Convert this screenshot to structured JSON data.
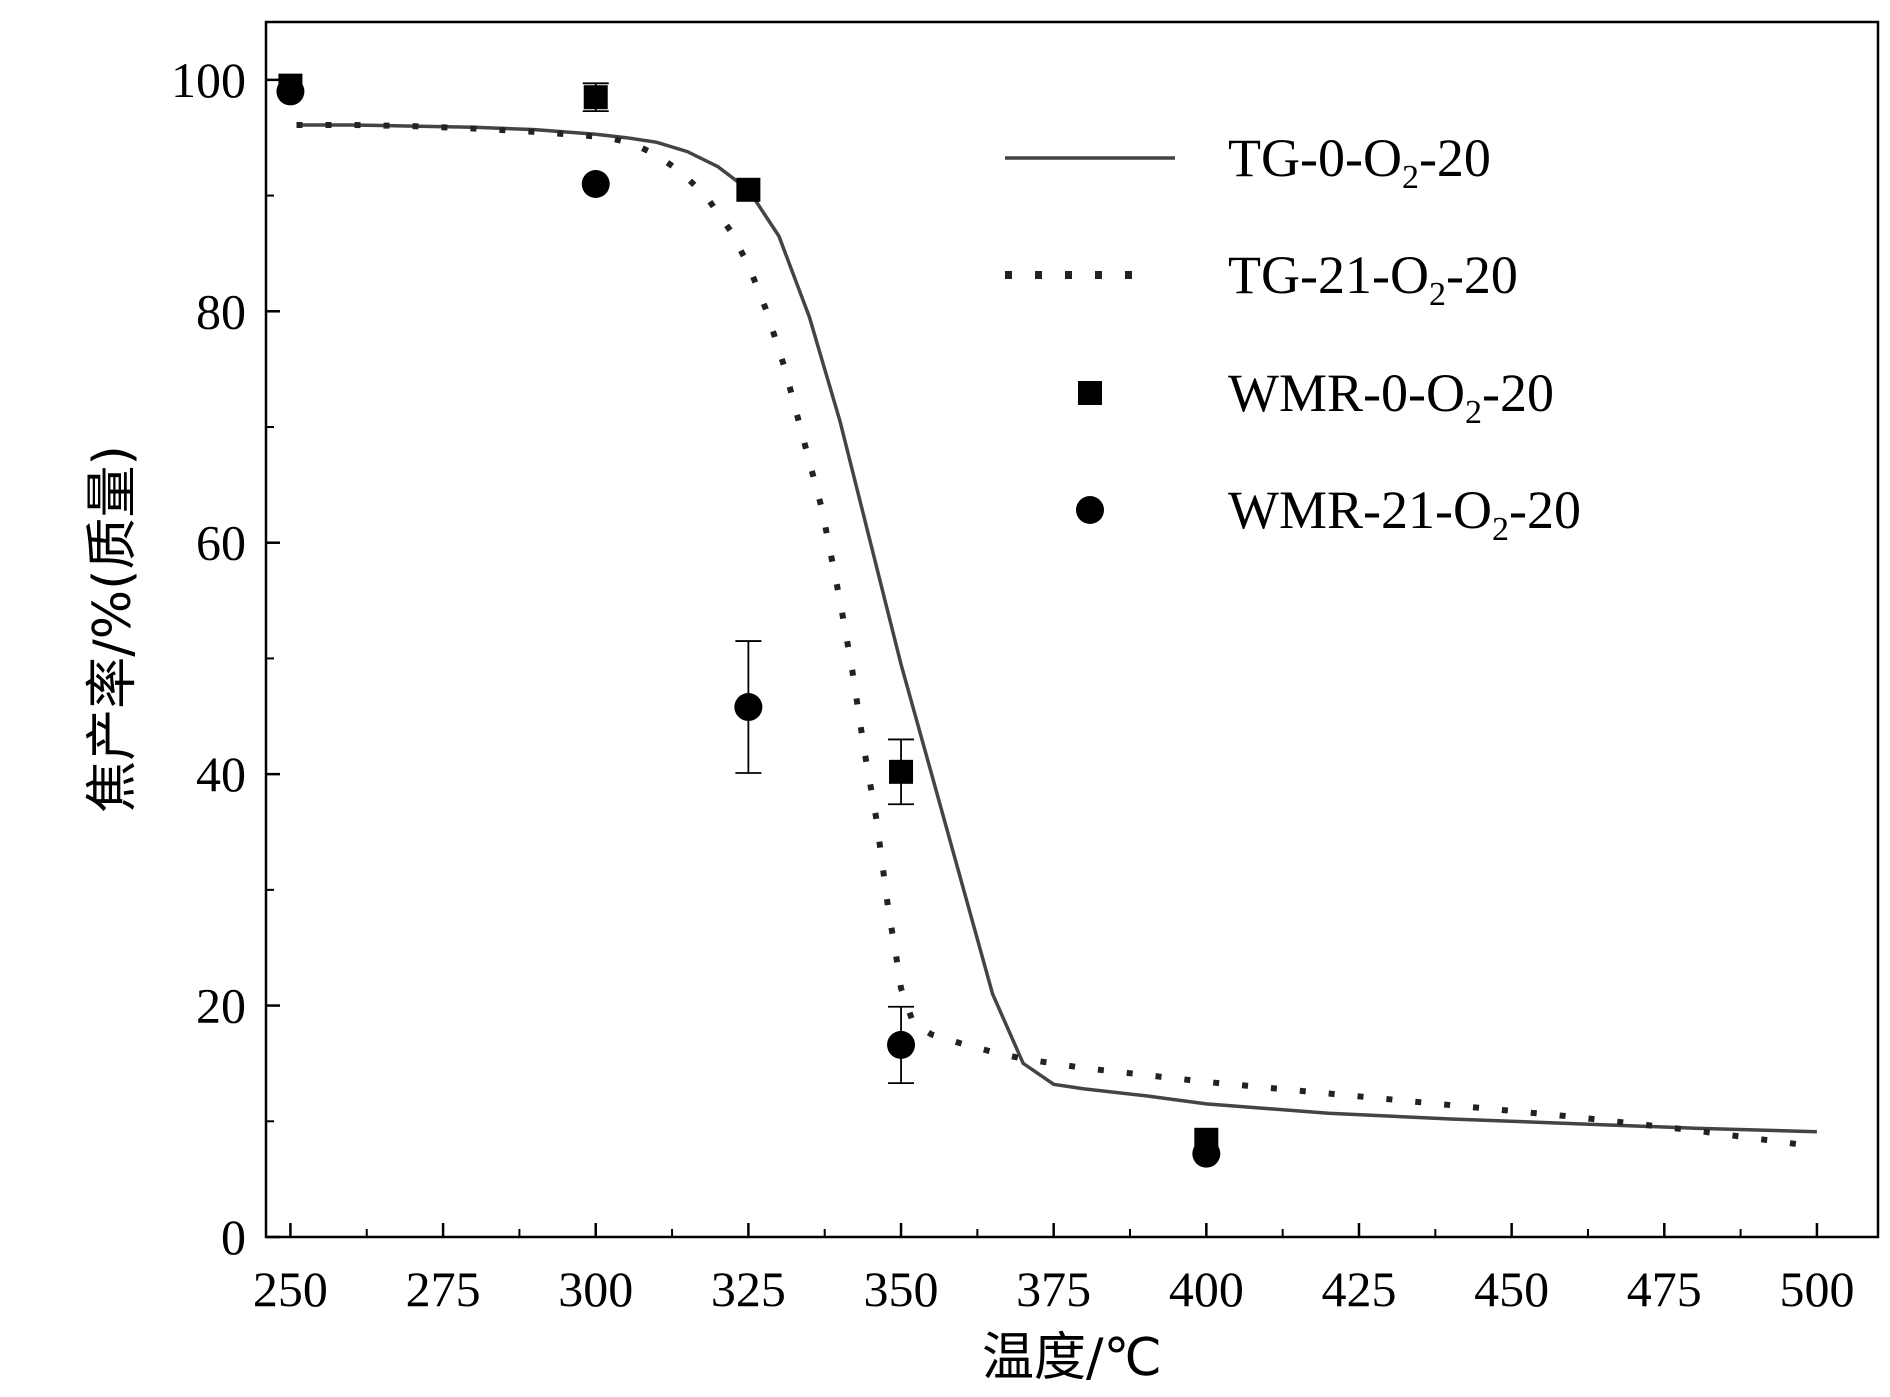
{
  "chart_data": {
    "type": "scatter",
    "xlabel": "温度/℃",
    "ylabel": "焦产率/%(质量)",
    "xlim": [
      246,
      510
    ],
    "ylim": [
      0,
      105
    ],
    "xticks": [
      250,
      275,
      300,
      325,
      350,
      375,
      400,
      425,
      450,
      475,
      500
    ],
    "yticks": [
      0,
      20,
      40,
      60,
      80,
      100
    ],
    "grid": false,
    "legend_position": "top-right",
    "series": [
      {
        "name": "TG-0-O₂-20",
        "name_main": "TG-0-O",
        "name_sub": "2",
        "name_tail": "-20",
        "style": "line",
        "color": "#444444",
        "x": [
          251,
          260,
          270,
          280,
          290,
          300,
          305,
          310,
          315,
          320,
          325,
          330,
          335,
          340,
          345,
          350,
          355,
          360,
          365,
          370,
          375,
          380,
          390,
          400,
          420,
          440,
          460,
          480,
          500
        ],
        "y": [
          96.1,
          96.1,
          96.0,
          95.9,
          95.7,
          95.3,
          95.0,
          94.6,
          93.8,
          92.5,
          90.5,
          86.5,
          79.5,
          70.5,
          60.0,
          49.5,
          40.0,
          30.5,
          21.0,
          15.0,
          13.2,
          12.8,
          12.2,
          11.5,
          10.7,
          10.2,
          9.8,
          9.4,
          9.1
        ]
      },
      {
        "name": "TG-21-O₂-20",
        "name_main": "TG-21-O",
        "name_sub": "2",
        "name_tail": "-20",
        "style": "dotted",
        "color": "#222222",
        "x": [
          251,
          260,
          270,
          280,
          290,
          298,
          302,
          306,
          310,
          314,
          318,
          322,
          325,
          328,
          331,
          334,
          337,
          340,
          342,
          344,
          346,
          347,
          348,
          349,
          350,
          352,
          355,
          360,
          365,
          370,
          380,
          400,
          420,
          440,
          460,
          480,
          500
        ],
        "y": [
          96.1,
          96.1,
          96.0,
          95.8,
          95.5,
          95.2,
          95.0,
          94.5,
          93.5,
          92.0,
          90.0,
          87.0,
          84.0,
          80.0,
          75.0,
          69.0,
          63.0,
          55.0,
          49.0,
          42.0,
          36.0,
          32.0,
          28.0,
          25.0,
          21.5,
          18.5,
          17.5,
          16.7,
          16.0,
          15.4,
          14.6,
          13.4,
          12.4,
          11.4,
          10.4,
          9.2,
          7.8
        ]
      },
      {
        "name": "WMR-0-O₂-20",
        "name_main": "WMR-0-O",
        "name_sub": "2",
        "name_tail": "-20",
        "style": "square",
        "color": "#000000",
        "x": [
          250,
          300,
          325,
          350,
          400
        ],
        "y": [
          99.5,
          98.5,
          90.5,
          40.2,
          8.4
        ],
        "err": [
          0,
          1.2,
          0,
          2.8,
          0
        ]
      },
      {
        "name": "WMR-21-O₂-20",
        "name_main": "WMR-21-O",
        "name_sub": "2",
        "name_tail": "-20",
        "style": "circle",
        "color": "#000000",
        "x": [
          250,
          300,
          325,
          350,
          400
        ],
        "y": [
          99.0,
          91.0,
          45.8,
          16.6,
          7.2
        ],
        "err": [
          0,
          0,
          5.7,
          3.3,
          0
        ]
      }
    ]
  }
}
